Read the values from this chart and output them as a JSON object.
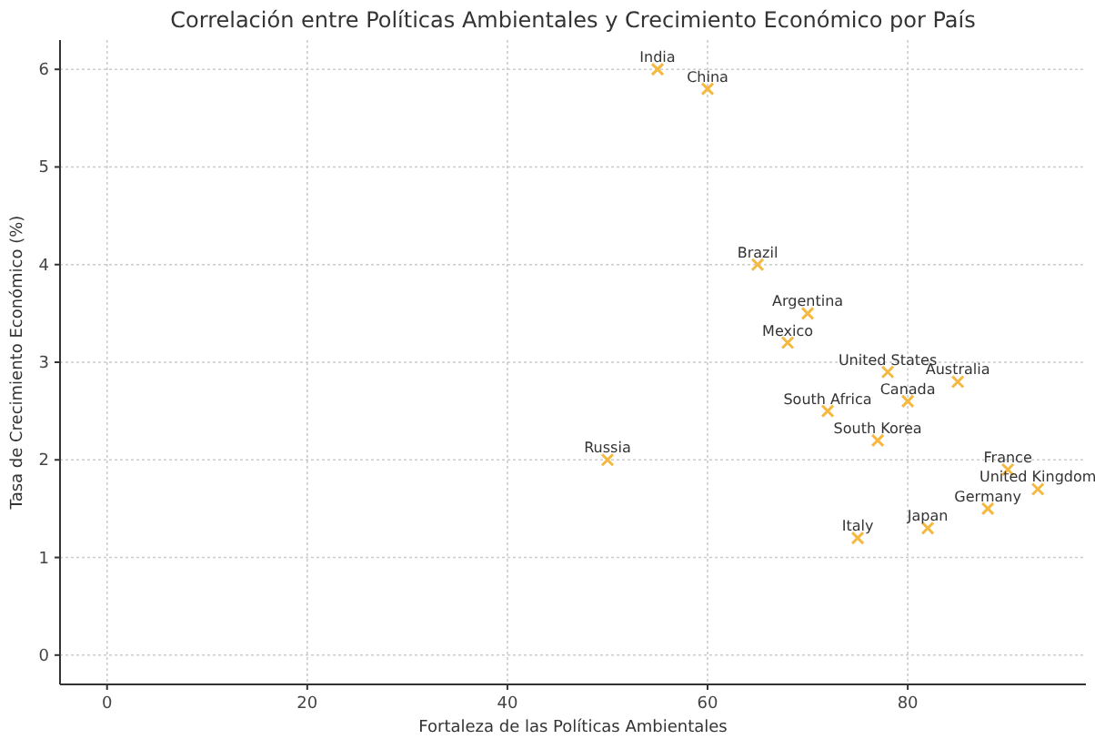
{
  "chart_data": {
    "type": "scatter",
    "title": "Correlación entre Políticas Ambientales y Crecimiento Económico por País",
    "xlabel": "Fortaleza de las Políticas Ambientales",
    "ylabel": "Tasa de Crecimiento Económico (%)",
    "xlim": [
      -4.7,
      97.8
    ],
    "ylim": [
      -0.3,
      6.3
    ],
    "xticks": [
      0,
      20,
      40,
      60,
      80
    ],
    "yticks": [
      0,
      1,
      2,
      3,
      4,
      5,
      6
    ],
    "grid": true,
    "marker": "cross",
    "series": [
      {
        "color": "#f5b942",
        "x": [
          55,
          60,
          65,
          70,
          68,
          78,
          85,
          80,
          72,
          77,
          50,
          90,
          93,
          88,
          82,
          75
        ],
        "values": [
          6.0,
          5.8,
          4.0,
          3.5,
          3.2,
          2.9,
          2.8,
          2.6,
          2.5,
          2.2,
          2.0,
          1.9,
          1.7,
          1.5,
          1.3,
          1.2
        ]
      }
    ],
    "annotations": [
      {
        "text": "India",
        "x": 55,
        "y": 6.0
      },
      {
        "text": "China",
        "x": 60,
        "y": 5.8
      },
      {
        "text": "Brazil",
        "x": 65,
        "y": 4.0
      },
      {
        "text": "Argentina",
        "x": 70,
        "y": 3.5
      },
      {
        "text": "Mexico",
        "x": 68,
        "y": 3.2
      },
      {
        "text": "United States",
        "x": 78,
        "y": 2.9
      },
      {
        "text": "Australia",
        "x": 85,
        "y": 2.8
      },
      {
        "text": "Canada",
        "x": 80,
        "y": 2.6
      },
      {
        "text": "South Africa",
        "x": 72,
        "y": 2.5
      },
      {
        "text": "South Korea",
        "x": 77,
        "y": 2.2
      },
      {
        "text": "Russia",
        "x": 50,
        "y": 2.0
      },
      {
        "text": "France",
        "x": 90,
        "y": 1.9
      },
      {
        "text": "United Kingdom",
        "x": 93,
        "y": 1.7
      },
      {
        "text": "Germany",
        "x": 88,
        "y": 1.5
      },
      {
        "text": "Japan",
        "x": 82,
        "y": 1.3
      },
      {
        "text": "Italy",
        "x": 75,
        "y": 1.2
      }
    ]
  }
}
